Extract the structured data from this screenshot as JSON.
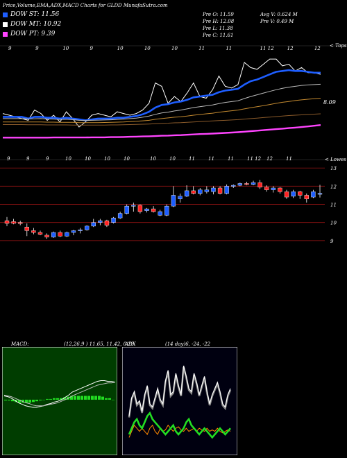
{
  "header": {
    "title": "Price,Volume,EMA,ADX,MACD Charts for GLDD MunafaSutra.com",
    "dow": [
      {
        "label": "DOW ST: 11.56",
        "color": "#1e5eff"
      },
      {
        "label": "DOW MT: 10.92",
        "color": "#ffffff"
      },
      {
        "label": "DOW PT: 9.39",
        "color": "#ff44ff"
      }
    ],
    "ohlc": [
      "Pre O: 11.59",
      "Pre H: 12.08",
      "Pre L: 11.38",
      "Pre C: 11.61"
    ],
    "volume": [
      "Avg V: 0.624 M",
      "Pre V: 0.49 M"
    ]
  },
  "top_chart": {
    "corner_label": "< Tops",
    "ema_value": "8.09",
    "x_tick_labels": [
      "9",
      "9",
      "10",
      "9",
      "10",
      "10",
      "10",
      "11",
      "11",
      "11 12",
      "12",
      "12"
    ]
  },
  "price_chart": {
    "corner_label": "< Lowes",
    "x_tick_labels": [
      "9",
      "9",
      "9",
      "10",
      "10",
      "10",
      "10",
      "10",
      "10",
      "11",
      "11",
      "11",
      "11 12",
      "12",
      "11"
    ],
    "y_ticks": [
      "13",
      "12",
      "11",
      "10",
      "9"
    ]
  },
  "macd": {
    "label": "MACD:",
    "params": "(12,26,9 ) 11.65, 11.42, 0.23"
  },
  "adx": {
    "label": "ADX",
    "params": "(14 day)6, -24, -22"
  },
  "chart_data": [
    {
      "type": "line",
      "title": "",
      "ylim": [
        7.5,
        13.5
      ],
      "series": [
        {
          "values": [
            9.6,
            9.5,
            9.4,
            9.3,
            9.2,
            9.8,
            9.6,
            9.2,
            9.5,
            9.1,
            9.7,
            9.3,
            8.8,
            9.1,
            9.5,
            9.6,
            9.5,
            9.4,
            9.7,
            9.6,
            9.5,
            9.6,
            9.8,
            10.2,
            11.4,
            11.2,
            10.2,
            10.6,
            10.3,
            10.8,
            11.4,
            10.6,
            10.5,
            11.0,
            11.8,
            11.2,
            11.1,
            11.3,
            12.6,
            12.3,
            12.2,
            12.5,
            12.8,
            12.8,
            12.4,
            12.5,
            12.1,
            12.3,
            12.0,
            12.0,
            11.9
          ],
          "color": "#ffffff"
        },
        {
          "values": [
            9.4,
            9.4,
            9.4,
            9.4,
            9.3,
            9.4,
            9.4,
            9.35,
            9.35,
            9.3,
            9.35,
            9.3,
            9.25,
            9.2,
            9.25,
            9.3,
            9.3,
            9.3,
            9.35,
            9.35,
            9.4,
            9.45,
            9.55,
            9.7,
            9.95,
            10.1,
            10.15,
            10.25,
            10.3,
            10.4,
            10.55,
            10.6,
            10.65,
            10.7,
            10.85,
            10.95,
            11.0,
            11.05,
            11.3,
            11.5,
            11.6,
            11.75,
            11.9,
            12.05,
            12.1,
            12.15,
            12.1,
            12.1,
            12.05,
            12.0,
            12.0
          ],
          "color": "#1e5eff"
        },
        {
          "values": [
            9.3,
            9.3,
            9.3,
            9.3,
            9.28,
            9.29,
            9.3,
            9.28,
            9.27,
            9.25,
            9.26,
            9.24,
            9.2,
            9.19,
            9.2,
            9.21,
            9.22,
            9.23,
            9.25,
            9.27,
            9.3,
            9.33,
            9.38,
            9.45,
            9.55,
            9.63,
            9.68,
            9.75,
            9.8,
            9.87,
            9.95,
            10.0,
            10.05,
            10.1,
            10.18,
            10.25,
            10.3,
            10.35,
            10.48,
            10.6,
            10.7,
            10.8,
            10.9,
            11.0,
            11.08,
            11.15,
            11.2,
            11.25,
            11.28,
            11.3,
            11.32
          ],
          "color": "#bbbbbb"
        },
        {
          "values": [
            9.1,
            9.1,
            9.1,
            9.1,
            9.1,
            9.1,
            9.1,
            9.09,
            9.09,
            9.08,
            9.08,
            9.08,
            9.06,
            9.06,
            9.06,
            9.06,
            9.07,
            9.08,
            9.09,
            9.1,
            9.12,
            9.14,
            9.17,
            9.2,
            9.26,
            9.3,
            9.34,
            9.38,
            9.41,
            9.45,
            9.5,
            9.54,
            9.58,
            9.62,
            9.67,
            9.72,
            9.76,
            9.8,
            9.87,
            9.94,
            10.0,
            10.06,
            10.13,
            10.2,
            10.26,
            10.31,
            10.36,
            10.4,
            10.44,
            10.47,
            10.5
          ],
          "color": "#c48a30"
        },
        {
          "values": [
            8.95,
            8.95,
            8.95,
            8.95,
            8.94,
            8.94,
            8.94,
            8.93,
            8.93,
            8.93,
            8.93,
            8.92,
            8.92,
            8.92,
            8.92,
            8.92,
            8.92,
            8.93,
            8.93,
            8.94,
            8.95,
            8.96,
            8.97,
            8.98,
            9.0,
            9.02,
            9.03,
            9.05,
            9.06,
            9.08,
            9.1,
            9.12,
            9.14,
            9.16,
            9.18,
            9.2,
            9.22,
            9.24,
            9.27,
            9.3,
            9.33,
            9.36,
            9.39,
            9.42,
            9.45,
            9.48,
            9.5,
            9.52,
            9.54,
            9.56,
            9.58
          ],
          "color": "#8a5a2a"
        },
        {
          "values": [
            8.18,
            8.18,
            8.18,
            8.18,
            8.18,
            8.18,
            8.18,
            8.18,
            8.19,
            8.19,
            8.19,
            8.19,
            8.19,
            8.19,
            8.2,
            8.2,
            8.2,
            8.21,
            8.21,
            8.22,
            8.23,
            8.24,
            8.25,
            8.26,
            8.27,
            8.29,
            8.3,
            8.32,
            8.33,
            8.35,
            8.37,
            8.39,
            8.4,
            8.42,
            8.44,
            8.46,
            8.48,
            8.5,
            8.53,
            8.56,
            8.59,
            8.62,
            8.65,
            8.68,
            8.71,
            8.74,
            8.77,
            8.8,
            8.84,
            8.88,
            8.92
          ],
          "color": "#ff44ff"
        }
      ]
    },
    {
      "type": "candlestick",
      "title": "",
      "ylim": [
        8.8,
        13.2
      ],
      "yticks": [
        13,
        12,
        11,
        10,
        9
      ],
      "candles": [
        {
          "o": 10.1,
          "h": 10.3,
          "l": 9.8,
          "c": 9.95,
          "dir": "down"
        },
        {
          "o": 10.05,
          "h": 10.2,
          "l": 9.9,
          "c": 9.95,
          "dir": "down"
        },
        {
          "o": 10.0,
          "h": 10.1,
          "l": 9.85,
          "c": 9.95,
          "dir": "down"
        },
        {
          "o": 9.75,
          "h": 9.95,
          "l": 9.25,
          "c": 9.55,
          "dir": "down"
        },
        {
          "o": 9.55,
          "h": 9.7,
          "l": 9.35,
          "c": 9.45,
          "dir": "down"
        },
        {
          "o": 9.45,
          "h": 9.55,
          "l": 9.3,
          "c": 9.35,
          "dir": "down"
        },
        {
          "o": 9.3,
          "h": 9.4,
          "l": 9.1,
          "c": 9.2,
          "dir": "down"
        },
        {
          "o": 9.2,
          "h": 9.5,
          "l": 9.15,
          "c": 9.45,
          "dir": "up"
        },
        {
          "o": 9.45,
          "h": 9.55,
          "l": 9.2,
          "c": 9.25,
          "dir": "down"
        },
        {
          "o": 9.25,
          "h": 9.5,
          "l": 9.2,
          "c": 9.45,
          "dir": "up"
        },
        {
          "o": 9.45,
          "h": 9.6,
          "l": 9.3,
          "c": 9.55,
          "dir": "up"
        },
        {
          "o": 9.55,
          "h": 9.7,
          "l": 9.4,
          "c": 9.6,
          "dir": "up"
        },
        {
          "o": 9.6,
          "h": 9.85,
          "l": 9.55,
          "c": 9.8,
          "dir": "up"
        },
        {
          "o": 9.8,
          "h": 10.2,
          "l": 9.75,
          "c": 10.0,
          "dir": "up"
        },
        {
          "o": 10.0,
          "h": 10.2,
          "l": 9.85,
          "c": 10.1,
          "dir": "up"
        },
        {
          "o": 10.1,
          "h": 10.15,
          "l": 9.75,
          "c": 9.85,
          "dir": "down"
        },
        {
          "o": 10.0,
          "h": 10.3,
          "l": 9.95,
          "c": 10.25,
          "dir": "up"
        },
        {
          "o": 10.25,
          "h": 10.6,
          "l": 10.2,
          "c": 10.5,
          "dir": "up"
        },
        {
          "o": 10.5,
          "h": 11.0,
          "l": 10.45,
          "c": 10.9,
          "dir": "up"
        },
        {
          "o": 10.9,
          "h": 11.1,
          "l": 10.6,
          "c": 10.95,
          "dir": "up"
        },
        {
          "o": 10.95,
          "h": 11.0,
          "l": 10.5,
          "c": 10.6,
          "dir": "down"
        },
        {
          "o": 10.65,
          "h": 10.8,
          "l": 10.55,
          "c": 10.75,
          "dir": "up"
        },
        {
          "o": 10.75,
          "h": 10.9,
          "l": 10.55,
          "c": 10.6,
          "dir": "down"
        },
        {
          "o": 10.6,
          "h": 10.7,
          "l": 10.35,
          "c": 10.4,
          "dir": "up"
        },
        {
          "o": 10.4,
          "h": 11.0,
          "l": 10.35,
          "c": 10.9,
          "dir": "up"
        },
        {
          "o": 10.9,
          "h": 12.0,
          "l": 10.85,
          "c": 11.5,
          "dir": "up"
        },
        {
          "o": 11.3,
          "h": 11.6,
          "l": 11.1,
          "c": 11.45,
          "dir": "up"
        },
        {
          "o": 11.45,
          "h": 12.05,
          "l": 11.4,
          "c": 11.75,
          "dir": "up"
        },
        {
          "o": 11.75,
          "h": 12.0,
          "l": 11.55,
          "c": 11.6,
          "dir": "down"
        },
        {
          "o": 11.6,
          "h": 11.9,
          "l": 11.5,
          "c": 11.8,
          "dir": "up"
        },
        {
          "o": 11.8,
          "h": 12.0,
          "l": 11.6,
          "c": 11.7,
          "dir": "up"
        },
        {
          "o": 11.7,
          "h": 12.0,
          "l": 11.55,
          "c": 11.9,
          "dir": "up"
        },
        {
          "o": 11.9,
          "h": 12.0,
          "l": 11.55,
          "c": 11.6,
          "dir": "down"
        },
        {
          "o": 11.6,
          "h": 12.1,
          "l": 11.55,
          "c": 12.0,
          "dir": "up"
        },
        {
          "o": 12.0,
          "h": 12.1,
          "l": 11.9,
          "c": 12.05,
          "dir": "up"
        },
        {
          "o": 12.05,
          "h": 12.2,
          "l": 12.0,
          "c": 12.15,
          "dir": "up"
        },
        {
          "o": 12.15,
          "h": 12.25,
          "l": 12.05,
          "c": 12.1,
          "dir": "down"
        },
        {
          "o": 12.1,
          "h": 12.3,
          "l": 12.05,
          "c": 12.2,
          "dir": "up"
        },
        {
          "o": 12.2,
          "h": 12.35,
          "l": 11.85,
          "c": 11.95,
          "dir": "down"
        },
        {
          "o": 11.95,
          "h": 12.05,
          "l": 11.7,
          "c": 11.8,
          "dir": "down"
        },
        {
          "o": 11.8,
          "h": 12.0,
          "l": 11.65,
          "c": 11.9,
          "dir": "up"
        },
        {
          "o": 11.9,
          "h": 11.95,
          "l": 11.6,
          "c": 11.7,
          "dir": "down"
        },
        {
          "o": 11.7,
          "h": 11.8,
          "l": 11.3,
          "c": 11.4,
          "dir": "down"
        },
        {
          "o": 11.45,
          "h": 11.8,
          "l": 11.35,
          "c": 11.7,
          "dir": "up"
        },
        {
          "o": 11.7,
          "h": 11.75,
          "l": 11.3,
          "c": 11.5,
          "dir": "down"
        },
        {
          "o": 11.5,
          "h": 11.6,
          "l": 11.1,
          "c": 11.3,
          "dir": "down"
        },
        {
          "o": 11.4,
          "h": 11.8,
          "l": 11.35,
          "c": 11.7,
          "dir": "up"
        },
        {
          "o": 11.59,
          "h": 12.08,
          "l": 11.38,
          "c": 11.61,
          "dir": "up"
        }
      ]
    },
    {
      "type": "line",
      "title": "MACD",
      "series": [
        {
          "values": [
            0.05,
            0.04,
            0.02,
            -0.01,
            -0.04,
            -0.06,
            -0.08,
            -0.09,
            -0.1,
            -0.1,
            -0.09,
            -0.08,
            -0.06,
            -0.05,
            -0.03,
            -0.02,
            0.0,
            0.03,
            0.06,
            0.1,
            0.12,
            0.14,
            0.16,
            0.18,
            0.2,
            0.22,
            0.24,
            0.25,
            0.25,
            0.24,
            0.24,
            0.23
          ],
          "color": "#ffffff"
        },
        {
          "values": [
            0.06,
            0.05,
            0.04,
            0.02,
            0.0,
            -0.02,
            -0.04,
            -0.05,
            -0.07,
            -0.08,
            -0.08,
            -0.08,
            -0.07,
            -0.06,
            -0.05,
            -0.04,
            -0.02,
            0.0,
            0.02,
            0.05,
            0.07,
            0.09,
            0.11,
            0.13,
            0.15,
            0.17,
            0.19,
            0.2,
            0.21,
            0.22,
            0.22,
            0.23
          ],
          "color": "#bbbbbb"
        }
      ],
      "histogram": [
        -0.01,
        -0.01,
        -0.02,
        -0.03,
        -0.04,
        -0.04,
        -0.04,
        -0.04,
        -0.03,
        -0.02,
        -0.01,
        0.0,
        0.01,
        0.01,
        0.02,
        0.02,
        0.02,
        0.03,
        0.04,
        0.05,
        0.05,
        0.05,
        0.05,
        0.05,
        0.05,
        0.05,
        0.05,
        0.05,
        0.04,
        0.02,
        0.02,
        0.0
      ]
    },
    {
      "type": "line",
      "title": "ADX",
      "series": [
        {
          "values": [
            22,
            34,
            38,
            30,
            32,
            25,
            36,
            42,
            30,
            28,
            34,
            40,
            33,
            30,
            45,
            52,
            36,
            38,
            50,
            42,
            36,
            55,
            48,
            40,
            38,
            50,
            44,
            36,
            42,
            48,
            38,
            30,
            36,
            40,
            44,
            38,
            30,
            28,
            36,
            40
          ],
          "color": "#ffffff"
        },
        {
          "values": [
            8,
            12,
            16,
            14,
            12,
            14,
            12,
            10,
            14,
            16,
            12,
            10,
            14,
            12,
            13,
            16,
            14,
            12,
            14,
            15,
            13,
            12,
            14,
            12,
            13,
            14,
            12,
            14,
            13,
            12,
            14,
            12,
            13,
            12,
            14,
            12,
            11,
            12,
            13,
            12
          ],
          "color": "#ff8800"
        },
        {
          "values": [
            10,
            14,
            18,
            20,
            16,
            14,
            18,
            22,
            24,
            20,
            18,
            16,
            14,
            12,
            10,
            12,
            14,
            16,
            12,
            10,
            12,
            14,
            18,
            20,
            16,
            14,
            12,
            10,
            12,
            14,
            12,
            10,
            8,
            10,
            12,
            14,
            12,
            10,
            12,
            14
          ],
          "color": "#22dd22"
        }
      ]
    }
  ]
}
